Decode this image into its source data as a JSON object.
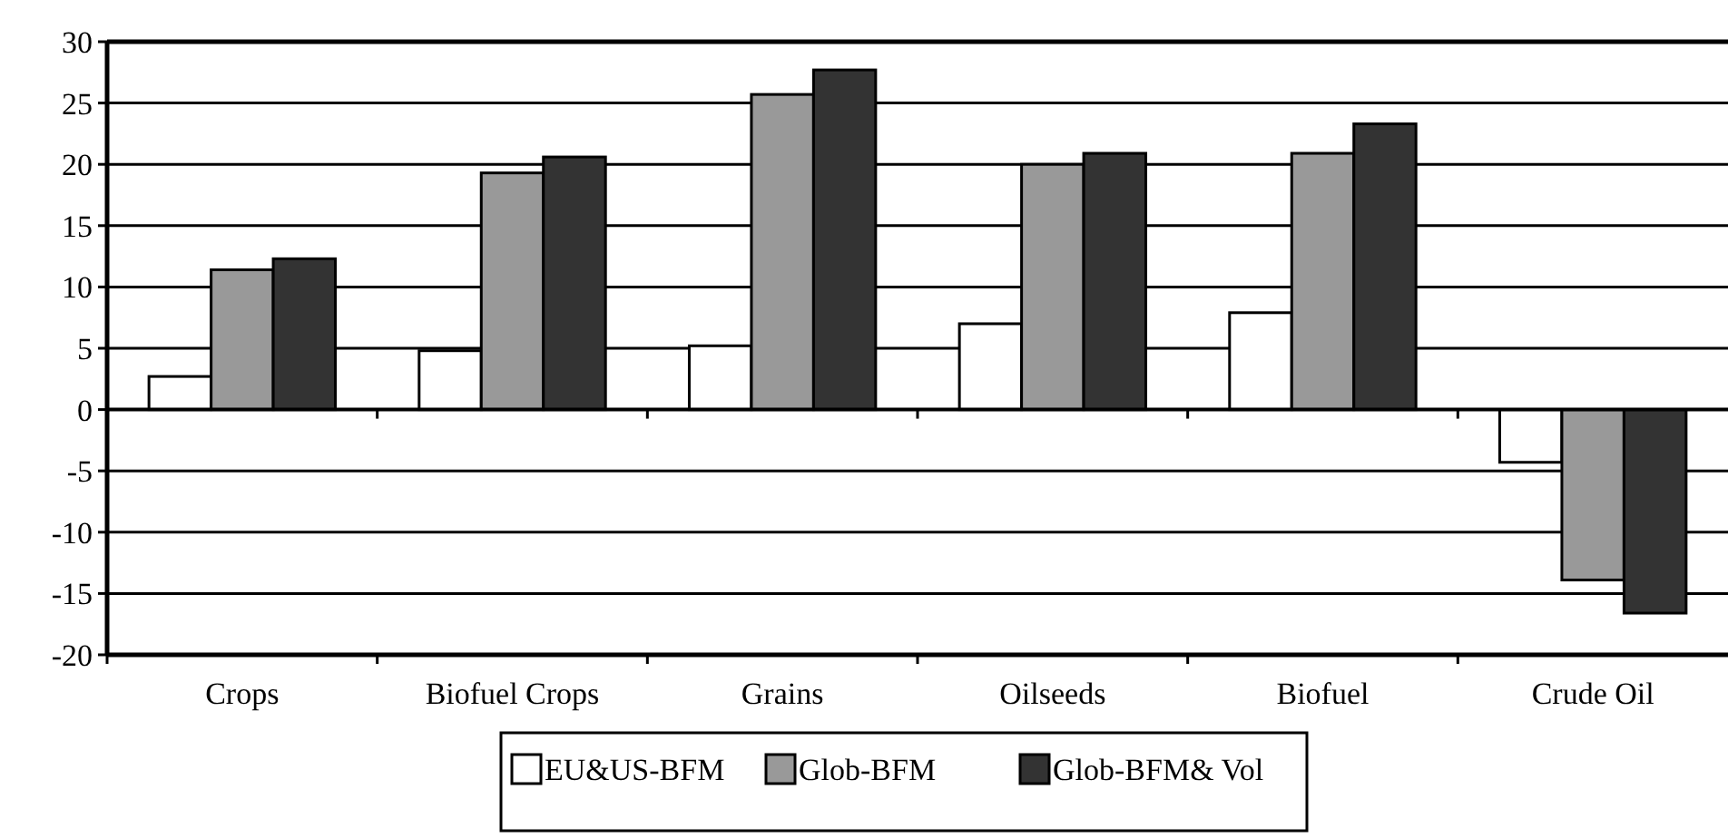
{
  "chart_data": {
    "type": "bar",
    "categories": [
      "Crops",
      "Biofuel Crops",
      "Grains",
      "Oilseeds",
      "Biofuel",
      "Crude Oil"
    ],
    "series": [
      {
        "name": "EU&US-BFM",
        "color": "#ffffff",
        "values": [
          2.7,
          4.8,
          5.2,
          7.0,
          7.9,
          -4.3
        ]
      },
      {
        "name": "Glob-BFM",
        "color": "#999999",
        "values": [
          11.4,
          19.3,
          25.7,
          20.0,
          20.9,
          -13.9
        ]
      },
      {
        "name": "Glob-BFM& Vol",
        "color": "#333333",
        "values": [
          12.3,
          20.6,
          27.7,
          20.9,
          23.3,
          -16.6
        ]
      }
    ],
    "ylim": [
      -20,
      30
    ],
    "yticks": [
      -20,
      -15,
      -10,
      -5,
      0,
      5,
      10,
      15,
      20,
      25,
      30
    ],
    "grid": "y",
    "legend": "bottom"
  }
}
